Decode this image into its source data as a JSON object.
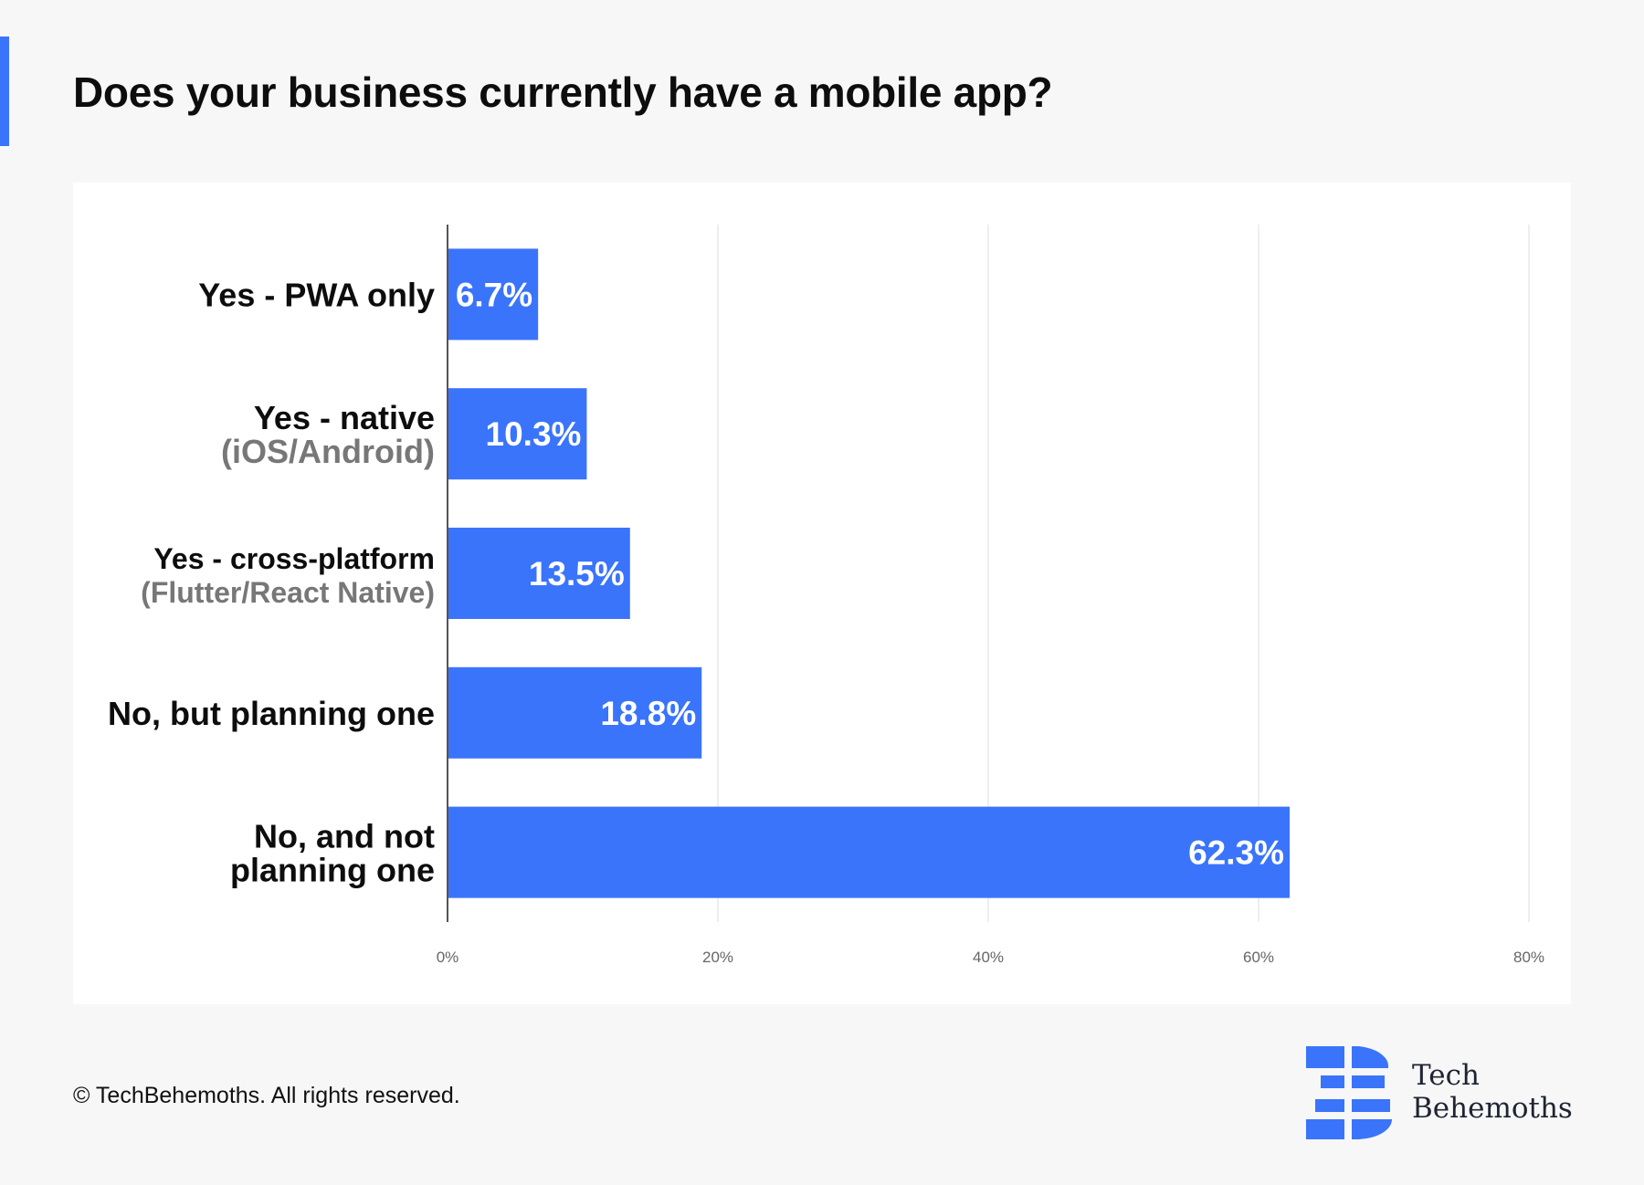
{
  "title": "Does your business currently have a mobile app?",
  "footer": {
    "copyright": "© TechBehemoths. All rights reserved.",
    "brand_line1": "Tech",
    "brand_line2": "Behemoths"
  },
  "colors": {
    "bar": "#3a74fb",
    "accent": "#3a74fb",
    "label_primary": "#0d0d0d",
    "label_secondary": "#777777",
    "grid": "#e9e9e9",
    "tick": "#666666"
  },
  "logo_icon": "techbehemoths-logo-icon",
  "chart_data": {
    "type": "bar",
    "orientation": "horizontal",
    "categories": [
      {
        "label": "Yes - PWA only",
        "sublabel": ""
      },
      {
        "label": "Yes - native",
        "sublabel": "(iOS/Android)"
      },
      {
        "label": "Yes - cross-platform",
        "sublabel": "(Flutter/React Native)"
      },
      {
        "label": "No, but planning one",
        "sublabel": ""
      },
      {
        "label": "No, and not",
        "sublabel": "planning one"
      }
    ],
    "values": [
      6.7,
      10.3,
      13.5,
      18.8,
      62.3
    ],
    "data_labels": [
      "6.7%",
      "10.3%",
      "13.5%",
      "18.8%",
      "62.3%"
    ],
    "xlim": [
      0,
      80
    ],
    "xticks": [
      0,
      20,
      40,
      60,
      80
    ],
    "xtick_labels": [
      "0%",
      "20%",
      "40%",
      "60%",
      "80%"
    ],
    "grid": true
  }
}
